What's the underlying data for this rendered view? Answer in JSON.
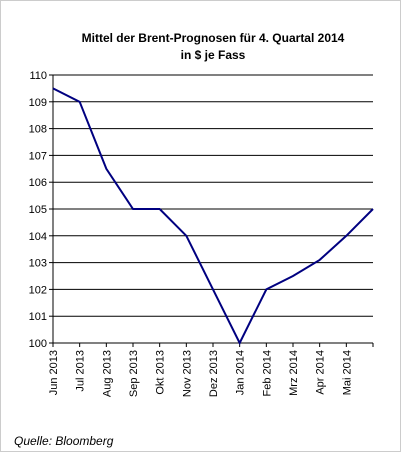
{
  "chart_data": {
    "type": "line",
    "title": "Mittel der Brent-Prognosen für 4. Quartal 2014",
    "subtitle": "in $ je Fass",
    "categories": [
      "Jun 2013",
      "Jul 2013",
      "Aug 2013",
      "Sep 2013",
      "Okt 2013",
      "Nov 2013",
      "Dez 2013",
      "Jan 2014",
      "Feb 2014",
      "Mrz 2014",
      "Apr 2014",
      "Mai 2014",
      null
    ],
    "series": [
      {
        "name": "Mittel",
        "color": "#000080",
        "values": [
          109.5,
          109,
          106.5,
          105,
          105,
          104,
          102,
          100,
          102,
          102.5,
          103.1,
          104,
          105
        ]
      }
    ],
    "ylim": [
      100,
      110
    ],
    "yticks": [
      100,
      101,
      102,
      103,
      104,
      105,
      106,
      107,
      108,
      109,
      110
    ],
    "grid": true,
    "source": "Quelle: Bloomberg"
  }
}
